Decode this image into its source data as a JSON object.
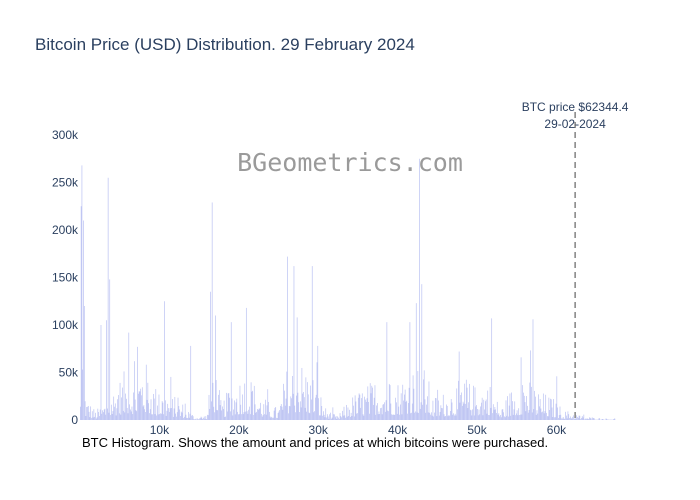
{
  "chart_data": {
    "type": "bar",
    "title": "Bitcoin Price (USD) Distribution. 29 February 2024",
    "watermark": "BGeometrics.com",
    "caption": "BTC Histogram. Shows the amount and prices at which bitcoins were purchased.",
    "bar_color": "#b9c0f2",
    "xlim": [
      0,
      68000
    ],
    "ylim": [
      0,
      300000
    ],
    "x_ticks": [
      10000,
      20000,
      30000,
      40000,
      50000,
      60000
    ],
    "x_tick_labels": [
      "10k",
      "20k",
      "30k",
      "40k",
      "50k",
      "60k"
    ],
    "y_ticks": [
      0,
      50000,
      100000,
      150000,
      200000,
      250000,
      300000
    ],
    "y_tick_labels": [
      "0",
      "50k",
      "100k",
      "150k",
      "200k",
      "250k",
      "300k"
    ],
    "annotation": {
      "x": 62344.4,
      "line1": "BTC price $62344.4",
      "line2": "29-02-2024"
    },
    "profile": {
      "bin_width": 100,
      "base_segments": [
        [
          0,
          10000
        ],
        [
          200,
          60000
        ],
        [
          800,
          20000
        ],
        [
          2000,
          8000
        ],
        [
          3500,
          20000
        ],
        [
          4800,
          35000
        ],
        [
          6000,
          45000
        ],
        [
          7000,
          40000
        ],
        [
          8000,
          55000
        ],
        [
          9500,
          30000
        ],
        [
          11000,
          25000
        ],
        [
          13000,
          15000
        ],
        [
          14500,
          3000
        ],
        [
          16000,
          5000
        ],
        [
          16800,
          60000
        ],
        [
          17800,
          15000
        ],
        [
          19000,
          30000
        ],
        [
          21000,
          45000
        ],
        [
          23000,
          20000
        ],
        [
          25000,
          10000
        ],
        [
          26000,
          45000
        ],
        [
          27500,
          55000
        ],
        [
          29500,
          40000
        ],
        [
          31000,
          10000
        ],
        [
          32500,
          3000
        ],
        [
          34000,
          20000
        ],
        [
          36000,
          30000
        ],
        [
          38000,
          40000
        ],
        [
          40000,
          35000
        ],
        [
          42000,
          50000
        ],
        [
          43500,
          45000
        ],
        [
          44500,
          20000
        ],
        [
          46000,
          25000
        ],
        [
          48000,
          35000
        ],
        [
          50000,
          30000
        ],
        [
          51500,
          35000
        ],
        [
          53000,
          10000
        ],
        [
          54000,
          25000
        ],
        [
          56000,
          40000
        ],
        [
          58000,
          25000
        ],
        [
          59500,
          20000
        ],
        [
          61000,
          8000
        ],
        [
          62000,
          8000
        ],
        [
          63000,
          4000
        ],
        [
          65000,
          2000
        ],
        [
          67500,
          1000
        ]
      ],
      "spikes": [
        [
          100,
          225000
        ],
        [
          200,
          268000
        ],
        [
          350,
          210000
        ],
        [
          450,
          120000
        ],
        [
          2600,
          100000
        ],
        [
          3300,
          105000
        ],
        [
          3500,
          255000
        ],
        [
          3700,
          148000
        ],
        [
          6100,
          92000
        ],
        [
          7200,
          77000
        ],
        [
          10600,
          125000
        ],
        [
          13900,
          78000
        ],
        [
          16400,
          135000
        ],
        [
          16600,
          229000
        ],
        [
          17000,
          110000
        ],
        [
          19000,
          103000
        ],
        [
          20900,
          118000
        ],
        [
          26100,
          172000
        ],
        [
          26900,
          162000
        ],
        [
          27300,
          108000
        ],
        [
          29200,
          162000
        ],
        [
          29900,
          78000
        ],
        [
          38600,
          103000
        ],
        [
          41500,
          103000
        ],
        [
          42300,
          123000
        ],
        [
          42700,
          275000
        ],
        [
          43000,
          143000
        ],
        [
          51800,
          107000
        ],
        [
          55500,
          66000
        ],
        [
          57000,
          106000
        ],
        [
          60000,
          46000
        ]
      ]
    }
  }
}
